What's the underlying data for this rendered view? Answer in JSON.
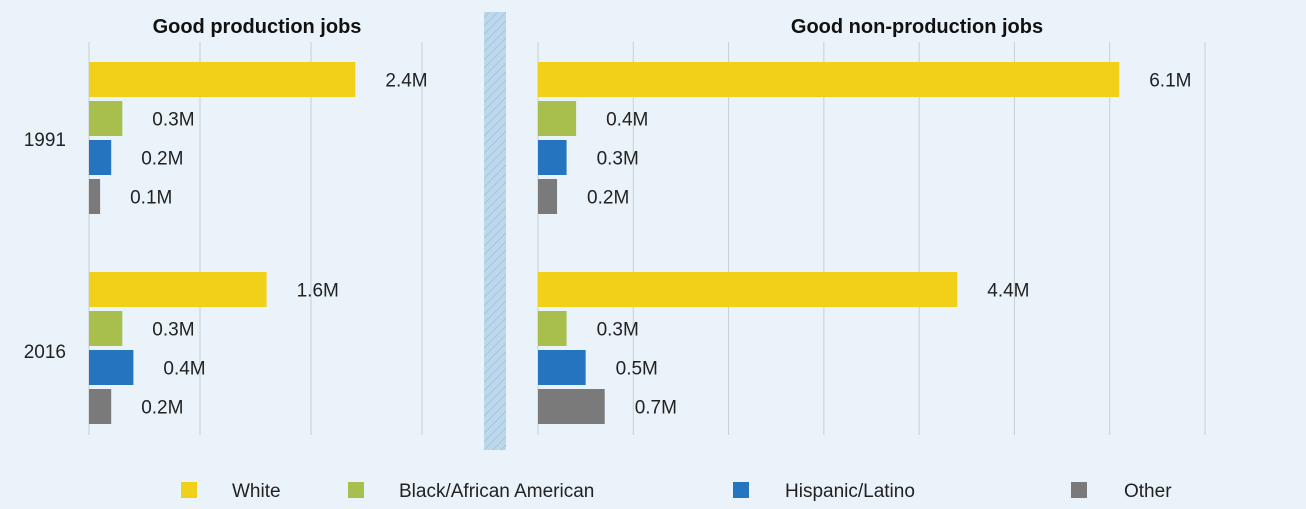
{
  "chart_data": {
    "type": "bar",
    "orientation": "horizontal",
    "categories": [
      "1991",
      "2016"
    ],
    "unit_suffix": "M",
    "series": [
      {
        "name": "White",
        "color": "#f0d018"
      },
      {
        "name": "Black/African American",
        "color": "#a8bf4d"
      },
      {
        "name": "Hispanic/Latino",
        "color": "#2474bf"
      },
      {
        "name": "Other",
        "color": "#7a7a7a"
      }
    ],
    "panels": [
      {
        "title": "Good production jobs",
        "xlim": [
          0,
          3.0
        ],
        "values": {
          "1991": [
            2.4,
            0.3,
            0.2,
            0.1
          ],
          "2016": [
            1.6,
            0.3,
            0.4,
            0.2
          ]
        },
        "labels": {
          "1991": [
            "2.4M",
            "0.3M",
            "0.2M",
            "0.1M"
          ],
          "2016": [
            "1.6M",
            "0.3M",
            "0.4M",
            "0.2M"
          ]
        }
      },
      {
        "title": "Good non-production jobs",
        "xlim": [
          0,
          7.0
        ],
        "values": {
          "1991": [
            6.1,
            0.4,
            0.3,
            0.2
          ],
          "2016": [
            4.4,
            0.3,
            0.5,
            0.7
          ]
        },
        "labels": {
          "1991": [
            "6.1M",
            "0.4M",
            "0.3M",
            "0.2M"
          ],
          "2016": [
            "4.4M",
            "0.3M",
            "0.5M",
            "0.7M"
          ]
        }
      }
    ],
    "grid": true,
    "legend_position": "bottom"
  }
}
